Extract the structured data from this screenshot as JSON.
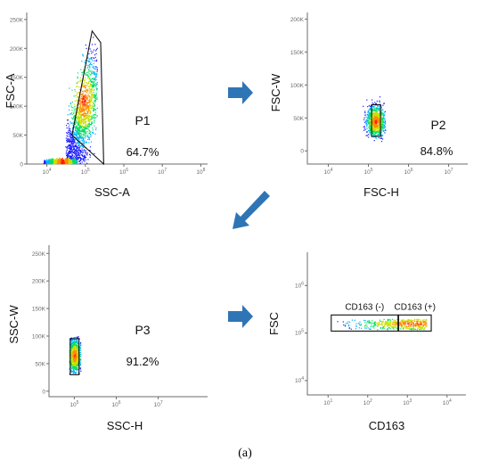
{
  "caption": "(a)",
  "colors": {
    "arrow": "#2e75b6",
    "event_colors": [
      "#1a1aff",
      "#00b0ff",
      "#00e060",
      "#c8e000",
      "#ff8c00",
      "#ff2000"
    ]
  },
  "chart_data": [
    {
      "type": "scatter",
      "xlabel": "SSC-A",
      "ylabel": "FSC-A",
      "x_scale": "log",
      "x_ticks": [
        "10^4",
        "10^5",
        "10^6",
        "10^7",
        "10^8"
      ],
      "y_ticks": [
        "0",
        "50K",
        "100K",
        "150K",
        "200K",
        "250K"
      ],
      "xlim": [
        3000,
        150000000
      ],
      "ylim": [
        0,
        262144
      ],
      "gate": {
        "name": "P1",
        "percent": "64.7%",
        "polygon": [
          [
            45000,
            50000
          ],
          [
            300000,
            0
          ],
          [
            250000,
            210000
          ],
          [
            150000,
            230000
          ]
        ]
      },
      "density": [
        {
          "x": [
            30000,
            200000
          ],
          "y": [
            0,
            230000
          ],
          "core": [
            90000,
            110000
          ],
          "spread": [
            0.35,
            50000
          ]
        },
        {
          "x": [
            8000,
            60000
          ],
          "y": [
            0,
            12000
          ],
          "core": [
            25000,
            2500
          ],
          "spread": [
            0.25,
            3000
          ]
        }
      ]
    },
    {
      "type": "scatter",
      "xlabel": "FSC-H",
      "ylabel": "FSC-W",
      "x_scale": "log",
      "x_ticks": [
        "10^4",
        "10^5",
        "10^6",
        "10^7"
      ],
      "y_ticks": [
        "0",
        "50K",
        "100K",
        "150K",
        "200K"
      ],
      "xlim": [
        3000,
        30000000
      ],
      "ylim": [
        -20000,
        210000
      ],
      "gate": {
        "name": "P2",
        "percent": "84.8%",
        "polygon": [
          [
            120000,
            22000
          ],
          [
            200000,
            22000
          ],
          [
            200000,
            70000
          ],
          [
            120000,
            70000
          ]
        ]
      },
      "density": [
        {
          "x": [
            70000,
            260000
          ],
          "y": [
            15000,
            85000
          ],
          "core": [
            150000,
            45000
          ],
          "spread": [
            0.12,
            12000
          ]
        }
      ]
    },
    {
      "type": "scatter",
      "xlabel": "SSC-H",
      "ylabel": "SSC-W",
      "x_scale": "log",
      "x_ticks": [
        "10^5",
        "10^6",
        "10^7"
      ],
      "y_ticks": [
        "0",
        "50K",
        "100K",
        "150K",
        "200K",
        "250K"
      ],
      "xlim": [
        25000,
        150000000
      ],
      "ylim": [
        -10000,
        265000
      ],
      "gate": {
        "name": "P3",
        "percent": "91.2%",
        "polygon": [
          [
            80000,
            30000
          ],
          [
            130000,
            30000
          ],
          [
            130000,
            95000
          ],
          [
            80000,
            95000
          ]
        ]
      },
      "density": [
        {
          "x": [
            75000,
            140000
          ],
          "y": [
            30000,
            100000
          ],
          "core": [
            100000,
            65000
          ],
          "spread": [
            0.08,
            15000
          ]
        }
      ]
    },
    {
      "type": "scatter",
      "xlabel": "CD163",
      "ylabel": "FSC",
      "x_scale": "log",
      "y_scale": "log",
      "x_ticks": [
        "10^1",
        "10^2",
        "10^3",
        "10^4"
      ],
      "y_ticks": [
        "10^4",
        "10^5",
        "10^6"
      ],
      "xlim": [
        3,
        30000
      ],
      "ylim": [
        5000,
        5000000
      ],
      "gates": [
        {
          "name": "CD163 (-)",
          "x": [
            12,
            580
          ],
          "y": [
            110000,
            240000
          ]
        },
        {
          "name": "CD163 (+)",
          "x": [
            600,
            4000
          ],
          "y": [
            110000,
            240000
          ]
        }
      ],
      "density": [
        {
          "x": [
            15,
            3000
          ],
          "y": [
            120000,
            200000
          ],
          "core": [
            1500,
            160000
          ],
          "spread": [
            0.8,
            0.08
          ]
        }
      ]
    }
  ]
}
